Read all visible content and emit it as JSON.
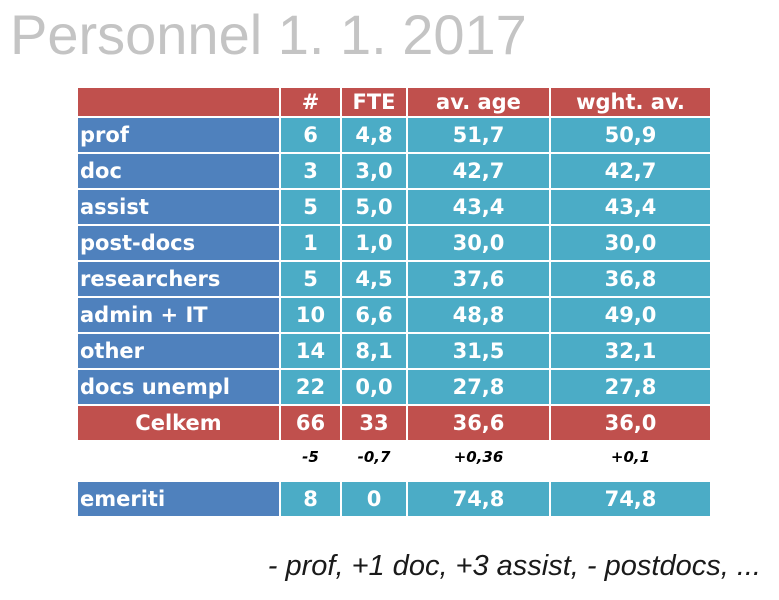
{
  "title": "Personnel 1. 1. 2017",
  "table": {
    "headers": [
      "",
      "#",
      "FTE",
      "av. age",
      "wght. av."
    ],
    "rows": [
      {
        "label": "prof",
        "count": "6",
        "fte": "4,8",
        "av_age": "51,7",
        "wght_av": "50,9"
      },
      {
        "label": "doc",
        "count": "3",
        "fte": "3,0",
        "av_age": "42,7",
        "wght_av": "42,7"
      },
      {
        "label": "assist",
        "count": "5",
        "fte": "5,0",
        "av_age": "43,4",
        "wght_av": "43,4"
      },
      {
        "label": "post-docs",
        "count": "1",
        "fte": "1,0",
        "av_age": "30,0",
        "wght_av": "30,0"
      },
      {
        "label": "researchers",
        "count": "5",
        "fte": "4,5",
        "av_age": "37,6",
        "wght_av": "36,8"
      },
      {
        "label": "admin + IT",
        "count": "10",
        "fte": "6,6",
        "av_age": "48,8",
        "wght_av": "49,0"
      },
      {
        "label": "other",
        "count": "14",
        "fte": "8,1",
        "av_age": "31,5",
        "wght_av": "32,1"
      },
      {
        "label": "docs unempl",
        "count": "22",
        "fte": "0,0",
        "av_age": "27,8",
        "wght_av": "27,8"
      }
    ],
    "total": {
      "label": "Celkem",
      "count": "66",
      "fte": "33",
      "av_age": "36,6",
      "wght_av": "36,0"
    },
    "diff": {
      "count": "-5",
      "fte": "-0,7",
      "av_age": "+0,36",
      "wght_av": "+0,1"
    },
    "emeriti": {
      "label": "emeriti",
      "count": "8",
      "fte": "0",
      "av_age": "74,8",
      "wght_av": "74,8"
    }
  },
  "footnote": "- prof,  +1 doc, +3 assist, - postdocs, ...",
  "colors": {
    "header_red": "#c0504d",
    "label_blue": "#4f81bd",
    "cell_teal": "#4bacc6",
    "title_gray": "#c4c4c4"
  }
}
